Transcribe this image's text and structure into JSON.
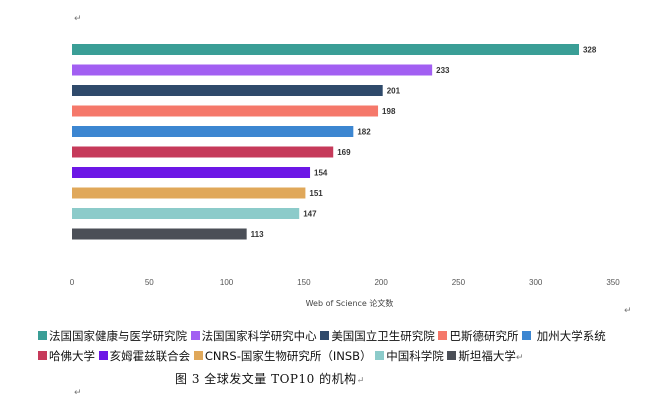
{
  "marks": {
    "return": "↵",
    "soft": "↵"
  },
  "chart_data": {
    "type": "bar",
    "orientation": "horizontal",
    "categories": [
      "法国国家健康与医学研究院",
      "法国国家科学研究中心",
      "美国国立卫生研究院",
      "巴斯德研究所",
      "加州大学系统",
      "哈佛大学",
      "亥姆霍兹联合会",
      "CNRS-国家生物研究所（INSB）",
      "中国科学院",
      "斯坦福大学"
    ],
    "values": [
      328,
      233,
      201,
      198,
      182,
      169,
      154,
      151,
      147,
      113
    ],
    "colors": [
      "#3a9e96",
      "#a25ff2",
      "#2f4a6b",
      "#f5786a",
      "#3c86d1",
      "#c63a5a",
      "#6c17e6",
      "#e0a85a",
      "#8ccbca",
      "#4b4f57"
    ],
    "xlabel": "Web of Science 论文数",
    "xlim": [
      0,
      350
    ],
    "xticks": [
      0,
      50,
      100,
      150,
      200,
      250,
      300,
      350
    ],
    "grid": false,
    "legend": "bottom"
  },
  "legend_items": [
    "法国国家健康与医学研究院",
    "法国国家科学研究中心",
    "美国国立卫生研究院",
    "巴斯德研究所",
    "加州大学系统",
    "哈佛大学",
    "亥姆霍兹联合会",
    "CNRS-国家生物研究所（INSB）",
    "中国科学院",
    "斯坦福大学"
  ],
  "caption": "图 3  全球发文量 TOP10 的机构"
}
